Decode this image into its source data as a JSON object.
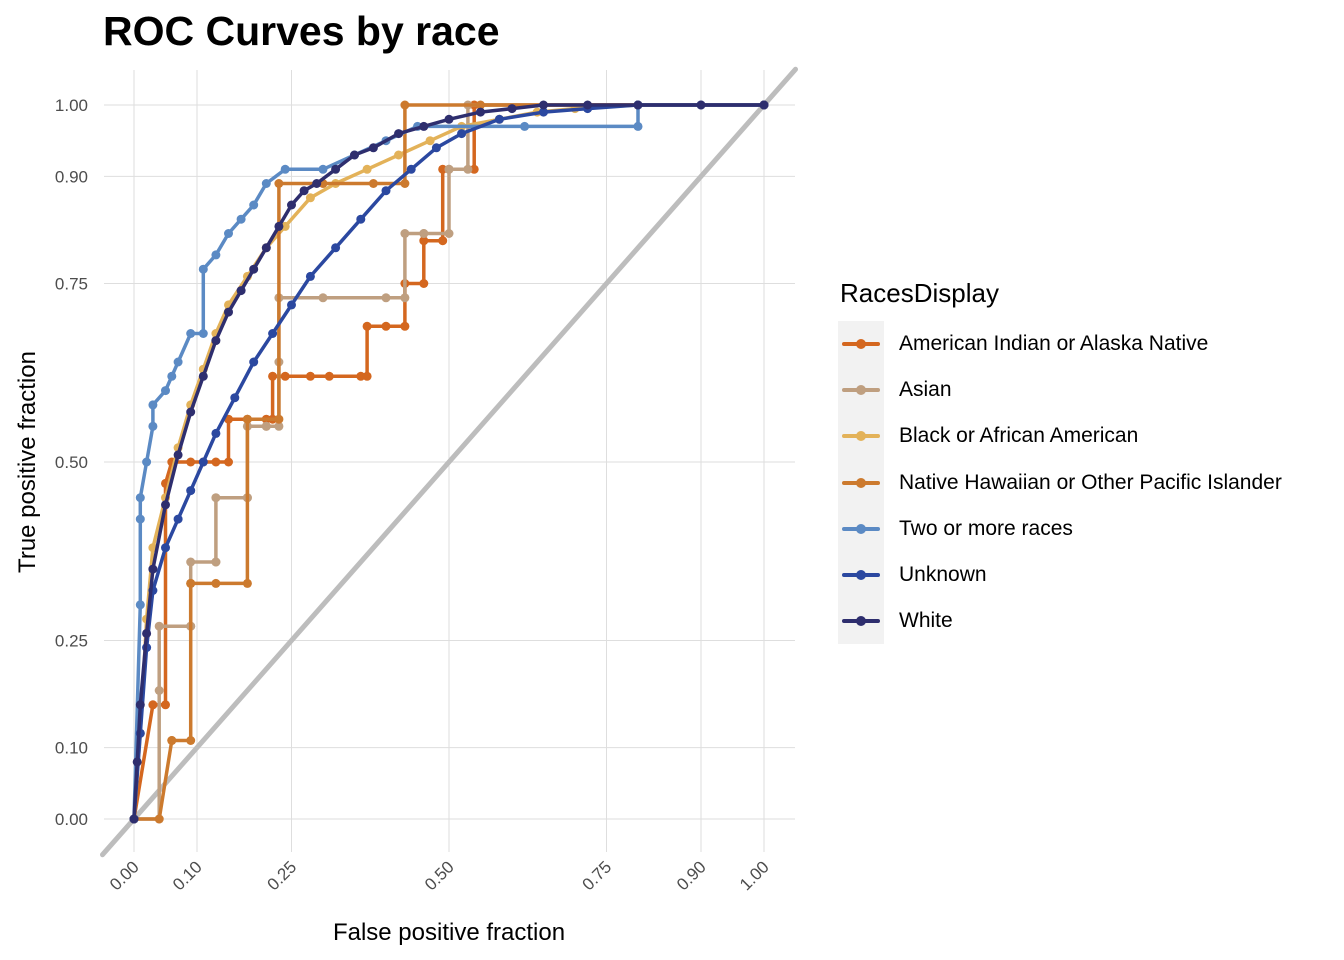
{
  "chart_data": {
    "type": "line",
    "title": "ROC Curves by race",
    "xlabel": "False positive fraction",
    "ylabel": "True positive fraction",
    "xlim": [
      0,
      1
    ],
    "ylim": [
      0,
      1
    ],
    "x_ticks": [
      "0.00",
      "0.10",
      "0.25",
      "0.50",
      "0.75",
      "0.90",
      "1.00"
    ],
    "y_ticks": [
      "0.00",
      "0.10",
      "0.25",
      "0.50",
      "0.75",
      "0.90",
      "1.00"
    ],
    "grid": true,
    "reference_line": "diagonal",
    "legend": {
      "title": "RacesDisplay",
      "position": "right"
    },
    "series": [
      {
        "name": "American Indian or Alaska Native",
        "color": "#d4671f",
        "x": [
          0,
          0.03,
          0.05,
          0.05,
          0.06,
          0.09,
          0.11,
          0.13,
          0.15,
          0.15,
          0.18,
          0.21,
          0.22,
          0.22,
          0.24,
          0.28,
          0.31,
          0.36,
          0.37,
          0.37,
          0.4,
          0.43,
          0.43,
          0.46,
          0.46,
          0.49,
          0.49,
          0.54,
          0.54,
          1.0
        ],
        "y": [
          0,
          0.16,
          0.16,
          0.47,
          0.5,
          0.5,
          0.5,
          0.5,
          0.5,
          0.56,
          0.56,
          0.56,
          0.56,
          0.62,
          0.62,
          0.62,
          0.62,
          0.62,
          0.62,
          0.69,
          0.69,
          0.69,
          0.75,
          0.75,
          0.81,
          0.81,
          0.91,
          0.91,
          1.0,
          1.0
        ]
      },
      {
        "name": "Asian",
        "color": "#bf9f80",
        "x": [
          0,
          0.04,
          0.04,
          0.04,
          0.09,
          0.09,
          0.09,
          0.13,
          0.13,
          0.13,
          0.18,
          0.18,
          0.18,
          0.21,
          0.21,
          0.23,
          0.23,
          0.23,
          0.3,
          0.4,
          0.43,
          0.43,
          0.46,
          0.46,
          0.5,
          0.5,
          0.5,
          0.53,
          0.53,
          1.0
        ],
        "y": [
          0,
          0.0,
          0.18,
          0.27,
          0.27,
          0.27,
          0.36,
          0.36,
          0.36,
          0.45,
          0.45,
          0.45,
          0.55,
          0.55,
          0.55,
          0.55,
          0.64,
          0.73,
          0.73,
          0.73,
          0.73,
          0.82,
          0.82,
          0.82,
          0.82,
          0.91,
          0.91,
          0.91,
          1.0,
          1.0
        ]
      },
      {
        "name": "Black or African American",
        "color": "#e3b259",
        "x": [
          0,
          0.01,
          0.02,
          0.03,
          0.05,
          0.07,
          0.09,
          0.11,
          0.13,
          0.15,
          0.18,
          0.21,
          0.24,
          0.28,
          0.32,
          0.37,
          0.42,
          0.47,
          0.52,
          0.58,
          0.64,
          0.7,
          0.8,
          1.0
        ],
        "y": [
          0,
          0.12,
          0.28,
          0.38,
          0.45,
          0.52,
          0.58,
          0.63,
          0.68,
          0.72,
          0.76,
          0.8,
          0.83,
          0.87,
          0.89,
          0.91,
          0.93,
          0.95,
          0.97,
          0.98,
          0.99,
          0.995,
          1.0,
          1.0
        ]
      },
      {
        "name": "Native Hawaiian or Other Pacific Islander",
        "color": "#cc7a2e",
        "x": [
          0,
          0.04,
          0.06,
          0.06,
          0.09,
          0.09,
          0.09,
          0.13,
          0.18,
          0.18,
          0.23,
          0.23,
          0.3,
          0.38,
          0.43,
          0.43,
          0.55,
          1.0
        ],
        "y": [
          0,
          0,
          0.11,
          0.11,
          0.11,
          0.33,
          0.33,
          0.33,
          0.33,
          0.56,
          0.56,
          0.89,
          0.89,
          0.89,
          0.89,
          1.0,
          1.0,
          1.0
        ]
      },
      {
        "name": "Two or more races",
        "color": "#5b8ac4",
        "x": [
          0,
          0.01,
          0.01,
          0.01,
          0.02,
          0.03,
          0.03,
          0.05,
          0.06,
          0.07,
          0.09,
          0.11,
          0.11,
          0.13,
          0.15,
          0.17,
          0.19,
          0.21,
          0.24,
          0.3,
          0.35,
          0.4,
          0.45,
          0.62,
          0.8,
          0.8,
          1.0
        ],
        "y": [
          0,
          0.3,
          0.42,
          0.45,
          0.5,
          0.55,
          0.58,
          0.6,
          0.62,
          0.64,
          0.68,
          0.68,
          0.77,
          0.79,
          0.82,
          0.84,
          0.86,
          0.89,
          0.91,
          0.91,
          0.93,
          0.95,
          0.97,
          0.97,
          0.97,
          1.0,
          1.0
        ]
      },
      {
        "name": "Unknown",
        "color": "#2b48a0",
        "x": [
          0,
          0.01,
          0.02,
          0.03,
          0.05,
          0.07,
          0.09,
          0.11,
          0.13,
          0.16,
          0.19,
          0.22,
          0.25,
          0.28,
          0.32,
          0.36,
          0.4,
          0.44,
          0.48,
          0.52,
          0.58,
          0.65,
          0.72,
          0.8,
          0.9,
          1.0
        ],
        "y": [
          0,
          0.12,
          0.24,
          0.32,
          0.38,
          0.42,
          0.46,
          0.5,
          0.54,
          0.59,
          0.64,
          0.68,
          0.72,
          0.76,
          0.8,
          0.84,
          0.88,
          0.91,
          0.94,
          0.96,
          0.98,
          0.99,
          0.995,
          1.0,
          1.0,
          1.0
        ]
      },
      {
        "name": "White",
        "color": "#2e2e6e",
        "x": [
          0,
          0.005,
          0.01,
          0.02,
          0.03,
          0.05,
          0.07,
          0.09,
          0.11,
          0.13,
          0.15,
          0.17,
          0.19,
          0.21,
          0.23,
          0.25,
          0.27,
          0.29,
          0.32,
          0.35,
          0.38,
          0.42,
          0.46,
          0.5,
          0.55,
          0.6,
          0.65,
          0.72,
          0.8,
          0.9,
          1.0
        ],
        "y": [
          0,
          0.08,
          0.16,
          0.26,
          0.35,
          0.44,
          0.51,
          0.57,
          0.62,
          0.67,
          0.71,
          0.74,
          0.77,
          0.8,
          0.83,
          0.86,
          0.88,
          0.89,
          0.91,
          0.93,
          0.94,
          0.96,
          0.97,
          0.98,
          0.99,
          0.995,
          1.0,
          1.0,
          1.0,
          1.0,
          1.0
        ]
      }
    ]
  }
}
